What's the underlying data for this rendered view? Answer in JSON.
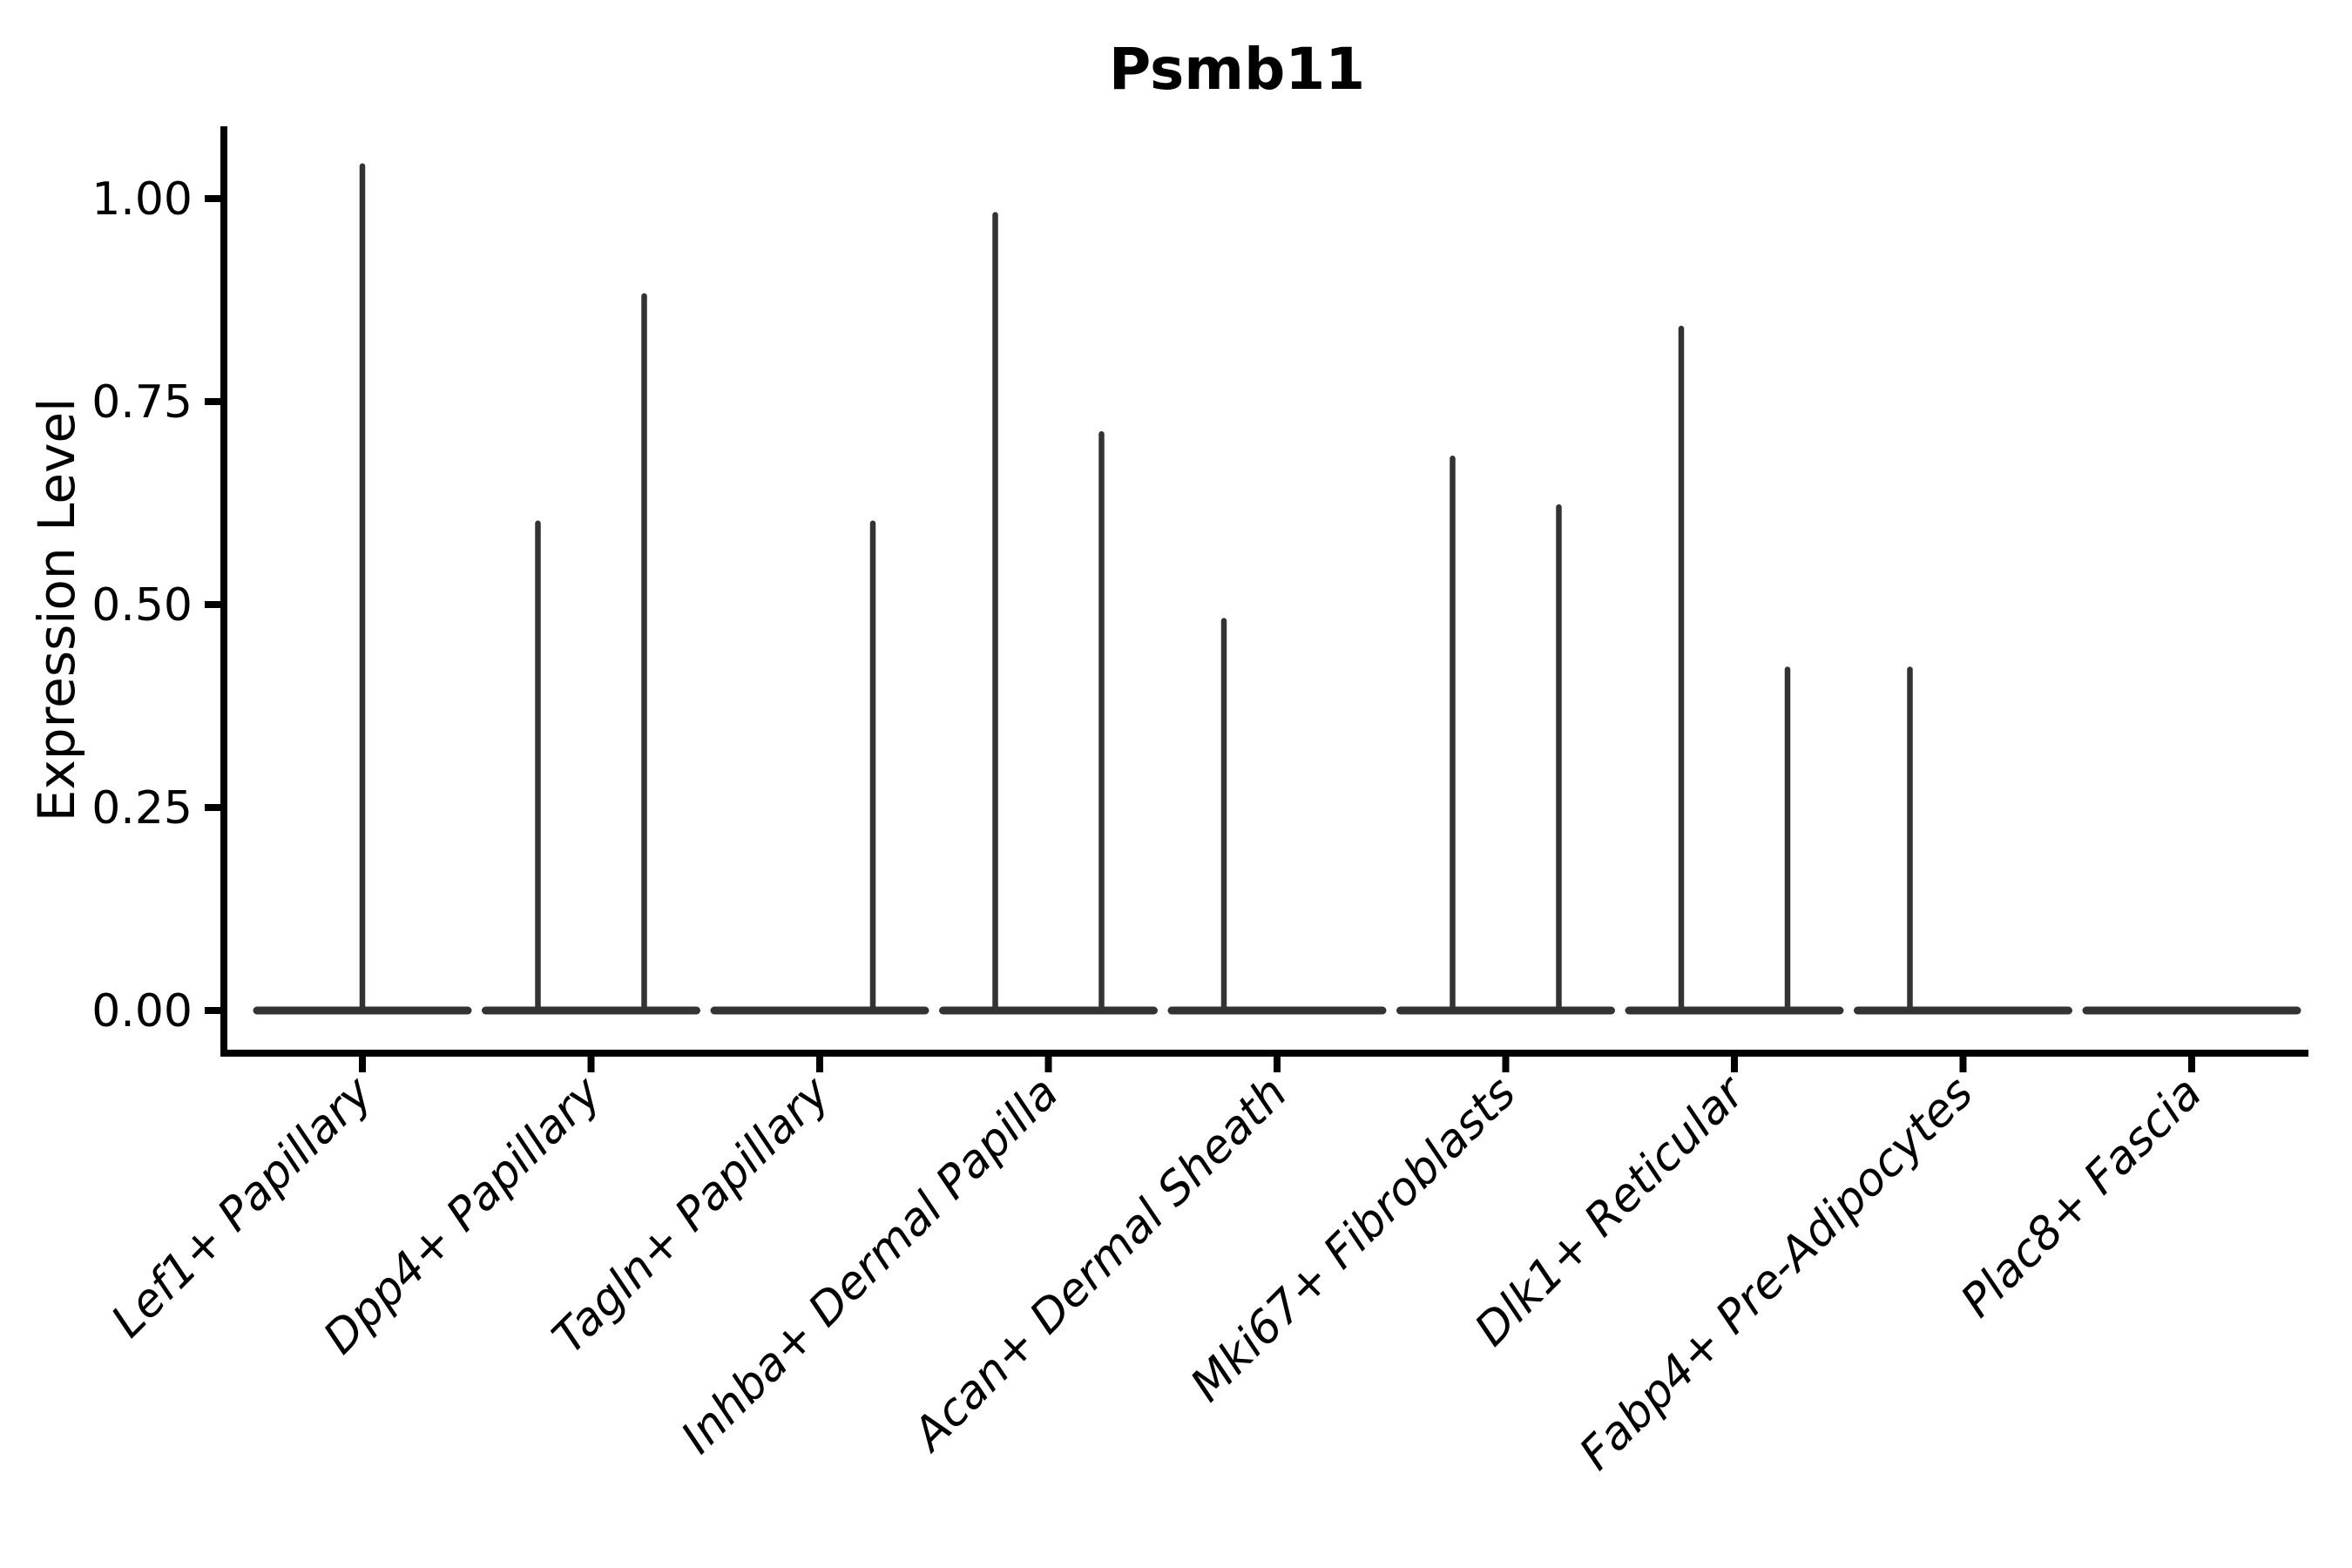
{
  "chart_data": {
    "type": "violin",
    "title": "Psmb11",
    "xlabel": "",
    "ylabel": "Expression Level",
    "ylim": [
      0,
      1.09
    ],
    "grid": false,
    "legend": null,
    "y_ticks": [
      0.0,
      0.25,
      0.5,
      0.75,
      1.0
    ],
    "y_tick_labels": [
      "0.00",
      "0.25",
      "0.50",
      "0.75",
      "1.00"
    ],
    "categories": [
      "Lef1+ Papillary",
      "Dpp4+ Papillary",
      "Tagln+ Papillary",
      "Inhba+ Dermal Papilla",
      "Acan+ Dermal Sheath",
      "Mki67+ Fibroblasts",
      "Dlk1+ Reticular",
      "Fabp4+ Pre-Adipocytes",
      "Plac8+ Fascia"
    ],
    "violins": [
      {
        "category": "Lef1+ Papillary",
        "baseline_value": 0.0,
        "spikes": [
          {
            "position": "center",
            "value": 1.04
          }
        ]
      },
      {
        "category": "Dpp4+ Papillary",
        "baseline_value": 0.0,
        "spikes": [
          {
            "position": "left",
            "value": 0.6
          },
          {
            "position": "right",
            "value": 0.88
          }
        ]
      },
      {
        "category": "Tagln+ Papillary",
        "baseline_value": 0.0,
        "spikes": [
          {
            "position": "right",
            "value": 0.6
          }
        ]
      },
      {
        "category": "Inhba+ Dermal Papilla",
        "baseline_value": 0.0,
        "spikes": [
          {
            "position": "left",
            "value": 0.98
          },
          {
            "position": "right",
            "value": 0.71
          }
        ]
      },
      {
        "category": "Acan+ Dermal Sheath",
        "baseline_value": 0.0,
        "spikes": [
          {
            "position": "left",
            "value": 0.48
          }
        ]
      },
      {
        "category": "Mki67+ Fibroblasts",
        "baseline_value": 0.0,
        "spikes": [
          {
            "position": "left",
            "value": 0.68
          },
          {
            "position": "right",
            "value": 0.62
          }
        ]
      },
      {
        "category": "Dlk1+ Reticular",
        "baseline_value": 0.0,
        "spikes": [
          {
            "position": "left",
            "value": 0.84
          },
          {
            "position": "right",
            "value": 0.42
          }
        ]
      },
      {
        "category": "Fabp4+ Pre-Adipocytes",
        "baseline_value": 0.0,
        "spikes": [
          {
            "position": "left",
            "value": 0.42
          }
        ]
      },
      {
        "category": "Plac8+ Fascia",
        "baseline_value": 0.0,
        "spikes": []
      }
    ],
    "colors": {
      "violin_stroke": "#333333",
      "axis_color": "#000000",
      "background": "#ffffff"
    }
  }
}
